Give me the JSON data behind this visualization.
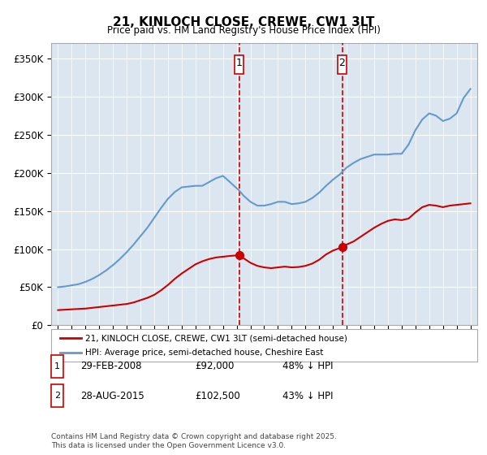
{
  "title": "21, KINLOCH CLOSE, CREWE, CW1 3LT",
  "subtitle": "Price paid vs. HM Land Registry's House Price Index (HPI)",
  "legend_line1": "21, KINLOCH CLOSE, CREWE, CW1 3LT (semi-detached house)",
  "legend_line2": "HPI: Average price, semi-detached house, Cheshire East",
  "footnote": "Contains HM Land Registry data © Crown copyright and database right 2025.\nThis data is licensed under the Open Government Licence v3.0.",
  "transaction1_label": "1",
  "transaction1_date": "29-FEB-2008",
  "transaction1_price": "£92,000",
  "transaction1_hpi": "48% ↓ HPI",
  "transaction2_label": "2",
  "transaction2_date": "28-AUG-2015",
  "transaction2_price": "£102,500",
  "transaction2_hpi": "43% ↓ HPI",
  "red_line_color": "#cc0000",
  "blue_line_color": "#6699cc",
  "vline_color": "#cc0000",
  "background_color": "#ffffff",
  "plot_bg_color": "#dce6f1",
  "grid_color": "#ffffff",
  "transaction1_x": 2008.17,
  "transaction2_x": 2015.67,
  "ylim": [
    0,
    370000
  ],
  "xlim": [
    1994.5,
    2025.5
  ],
  "yticks": [
    0,
    50000,
    100000,
    150000,
    200000,
    250000,
    300000,
    350000
  ],
  "ytick_labels": [
    "£0",
    "£50K",
    "£100K",
    "£150K",
    "£200K",
    "£250K",
    "£300K",
    "£350K"
  ],
  "xticks": [
    1995,
    1996,
    1997,
    1998,
    1999,
    2000,
    2001,
    2002,
    2003,
    2004,
    2005,
    2006,
    2007,
    2008,
    2009,
    2010,
    2011,
    2012,
    2013,
    2014,
    2015,
    2016,
    2017,
    2018,
    2019,
    2020,
    2021,
    2022,
    2023,
    2024,
    2025
  ],
  "red_x": [
    1995.0,
    1995.5,
    1996.0,
    1996.5,
    1997.0,
    1997.5,
    1998.0,
    1998.5,
    1999.0,
    1999.5,
    2000.0,
    2000.5,
    2001.0,
    2001.5,
    2002.0,
    2002.5,
    2003.0,
    2003.5,
    2004.0,
    2004.5,
    2005.0,
    2005.5,
    2006.0,
    2006.5,
    2007.0,
    2007.5,
    2008.17,
    2008.5,
    2009.0,
    2009.5,
    2010.0,
    2010.5,
    2011.0,
    2011.5,
    2012.0,
    2012.5,
    2013.0,
    2013.5,
    2014.0,
    2014.5,
    2015.0,
    2015.67,
    2016.0,
    2016.5,
    2017.0,
    2017.5,
    2018.0,
    2018.5,
    2019.0,
    2019.5,
    2020.0,
    2020.5,
    2021.0,
    2021.5,
    2022.0,
    2022.5,
    2023.0,
    2023.5,
    2024.0,
    2024.5,
    2025.0
  ],
  "red_y": [
    20000,
    20500,
    21000,
    21500,
    22000,
    23000,
    24000,
    25000,
    26000,
    27000,
    28000,
    30000,
    33000,
    36000,
    40000,
    46000,
    53000,
    61000,
    68000,
    74000,
    80000,
    84000,
    87000,
    89000,
    90000,
    91000,
    92000,
    88000,
    82000,
    78000,
    76000,
    75000,
    76000,
    77000,
    76000,
    76500,
    78000,
    81000,
    86000,
    93000,
    98000,
    102500,
    106000,
    110000,
    116000,
    122000,
    128000,
    133000,
    137000,
    139000,
    138000,
    140000,
    148000,
    155000,
    158000,
    157000,
    155000,
    157000,
    158000,
    159000,
    160000
  ],
  "blue_x": [
    1995.0,
    1995.5,
    1996.0,
    1996.5,
    1997.0,
    1997.5,
    1998.0,
    1998.5,
    1999.0,
    1999.5,
    2000.0,
    2000.5,
    2001.0,
    2001.5,
    2002.0,
    2002.5,
    2003.0,
    2003.5,
    2004.0,
    2004.5,
    2005.0,
    2005.5,
    2006.0,
    2006.5,
    2007.0,
    2007.5,
    2008.17,
    2008.5,
    2009.0,
    2009.5,
    2010.0,
    2010.5,
    2011.0,
    2011.5,
    2012.0,
    2012.5,
    2013.0,
    2013.5,
    2014.0,
    2014.5,
    2015.0,
    2015.5,
    2016.0,
    2016.5,
    2017.0,
    2017.5,
    2018.0,
    2018.5,
    2019.0,
    2019.5,
    2020.0,
    2020.5,
    2021.0,
    2021.5,
    2022.0,
    2022.5,
    2023.0,
    2023.5,
    2024.0,
    2024.5,
    2025.0
  ],
  "blue_y": [
    50000,
    51000,
    52500,
    54000,
    57000,
    61000,
    66000,
    72000,
    79000,
    87000,
    96000,
    106000,
    117000,
    128000,
    141000,
    154000,
    166000,
    175000,
    181000,
    182000,
    183000,
    183000,
    188000,
    193000,
    196000,
    188000,
    177000,
    170000,
    162000,
    157000,
    157000,
    159000,
    162000,
    162000,
    159000,
    160000,
    162000,
    167000,
    174000,
    183000,
    191000,
    198000,
    207000,
    213000,
    218000,
    221000,
    224000,
    224000,
    224000,
    225000,
    225000,
    237000,
    256000,
    270000,
    278000,
    275000,
    268000,
    271000,
    278000,
    298000,
    310000
  ],
  "transaction1_y_red": 92000,
  "transaction2_y_red": 102500
}
